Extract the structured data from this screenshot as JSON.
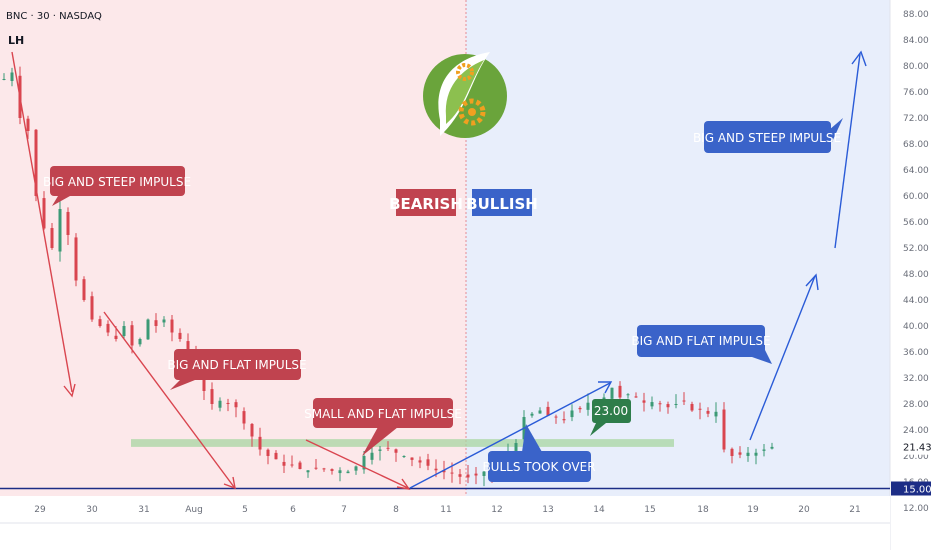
{
  "header": {
    "symbol": "BNC · 30 · NASDAQ",
    "pivot_label": "LH"
  },
  "colors": {
    "bearish_bg": "#fce8ea",
    "bullish_bg": "#e8eefb",
    "bearish_label": "#c0434f",
    "bullish_label": "#3a63c9",
    "candle_up": "#3c9a76",
    "candle_down": "#d9454f",
    "zone": "#a8d5a2",
    "support_line": "#1c2d86",
    "price_tag_current": "#ffffff",
    "price_tag_support": "#1c2d86",
    "target_tag": "#2e7d4a"
  },
  "labels": {
    "bearish": "BEARISH",
    "bullish": "BULLISH",
    "callout_1": "BIG AND STEEP IMPULSE",
    "callout_2": "BIG AND FLAT IMPULSE",
    "callout_3": "SMALL AND FLAT IMPULSE",
    "callout_4": "BULLS TOOK OVER",
    "callout_5": "BIG AND FLAT IMPULSE",
    "callout_6": "BIG AND STEEP IMPULSE",
    "target_value": "23.00"
  },
  "price_axis": {
    "current_price": "21.43",
    "support_price": "15.00"
  },
  "logo": {
    "name": "gear-leaf-logo"
  },
  "chart_data": {
    "type": "candlestick",
    "ylim": [
      10,
      90
    ],
    "y_ticks": [
      "88.00",
      "84.00",
      "80.00",
      "76.00",
      "72.00",
      "68.00",
      "64.00",
      "60.00",
      "56.00",
      "52.00",
      "48.00",
      "44.00",
      "40.00",
      "36.00",
      "32.00",
      "28.00",
      "24.00",
      "20.00",
      "16.00",
      "12.00"
    ],
    "x_ticks": [
      "29",
      "30",
      "31",
      "Aug",
      "5",
      "6",
      "7",
      "8",
      "11",
      "12",
      "13",
      "14",
      "15",
      "18",
      "19",
      "20",
      "21"
    ],
    "support_level": 15,
    "zone": [
      21.4,
      22.6
    ],
    "close_path": [
      [
        0,
        78
      ],
      [
        2,
        79
      ],
      [
        4,
        72
      ],
      [
        6,
        70
      ],
      [
        8,
        60
      ],
      [
        10,
        55
      ],
      [
        12,
        52
      ],
      [
        14,
        58
      ],
      [
        16,
        54
      ],
      [
        18,
        47
      ],
      [
        20,
        44
      ],
      [
        22,
        41
      ],
      [
        24,
        40
      ],
      [
        26,
        39
      ],
      [
        28,
        38
      ],
      [
        30,
        40
      ],
      [
        32,
        37
      ],
      [
        34,
        38
      ],
      [
        36,
        41
      ],
      [
        38,
        40
      ],
      [
        40,
        41
      ],
      [
        42,
        39
      ],
      [
        44,
        38
      ],
      [
        46,
        36
      ],
      [
        48,
        34
      ],
      [
        50,
        30
      ],
      [
        52,
        28
      ],
      [
        54,
        28.5
      ],
      [
        56,
        28
      ],
      [
        58,
        27.5
      ],
      [
        60,
        25
      ],
      [
        62,
        23
      ],
      [
        64,
        21
      ],
      [
        66,
        20
      ],
      [
        68,
        19.5
      ],
      [
        70,
        18.5
      ],
      [
        72,
        18.6
      ],
      [
        74,
        18
      ],
      [
        76,
        17.8
      ],
      [
        78,
        18.1
      ],
      [
        80,
        18
      ],
      [
        82,
        17.7
      ],
      [
        84,
        17.8
      ],
      [
        86,
        17.6
      ],
      [
        88,
        18.4
      ],
      [
        90,
        20
      ],
      [
        92,
        20.5
      ],
      [
        94,
        21
      ],
      [
        96,
        21.2
      ],
      [
        98,
        20.5
      ],
      [
        100,
        20
      ],
      [
        102,
        19.4
      ],
      [
        104,
        19
      ],
      [
        106,
        18.5
      ],
      [
        108,
        17.8
      ],
      [
        110,
        17.5
      ],
      [
        112,
        17.3
      ],
      [
        114,
        16.8
      ],
      [
        116,
        16.7
      ],
      [
        118,
        17
      ],
      [
        120,
        17.6
      ],
      [
        122,
        16.5
      ],
      [
        124,
        18
      ],
      [
        126,
        20.5
      ],
      [
        128,
        22
      ],
      [
        130,
        26
      ],
      [
        132,
        26.5
      ],
      [
        134,
        27
      ],
      [
        136,
        26.2
      ],
      [
        138,
        26
      ],
      [
        140,
        25.5
      ],
      [
        142,
        27
      ],
      [
        144,
        27.2
      ],
      [
        146,
        28.2
      ],
      [
        148,
        28.5
      ],
      [
        150,
        29
      ],
      [
        152,
        30.5
      ],
      [
        154,
        29
      ],
      [
        156,
        29.5
      ],
      [
        158,
        29
      ],
      [
        160,
        28.2
      ],
      [
        162,
        28.3
      ],
      [
        164,
        28
      ],
      [
        166,
        27.5
      ],
      [
        168,
        28
      ],
      [
        170,
        28.5
      ],
      [
        172,
        27
      ],
      [
        174,
        27.2
      ],
      [
        176,
        26.5
      ],
      [
        178,
        26.8
      ],
      [
        180,
        21
      ],
      [
        182,
        20
      ],
      [
        184,
        20.2
      ],
      [
        186,
        20.5
      ],
      [
        188,
        20.5
      ],
      [
        190,
        21
      ],
      [
        192,
        21.4
      ]
    ]
  }
}
